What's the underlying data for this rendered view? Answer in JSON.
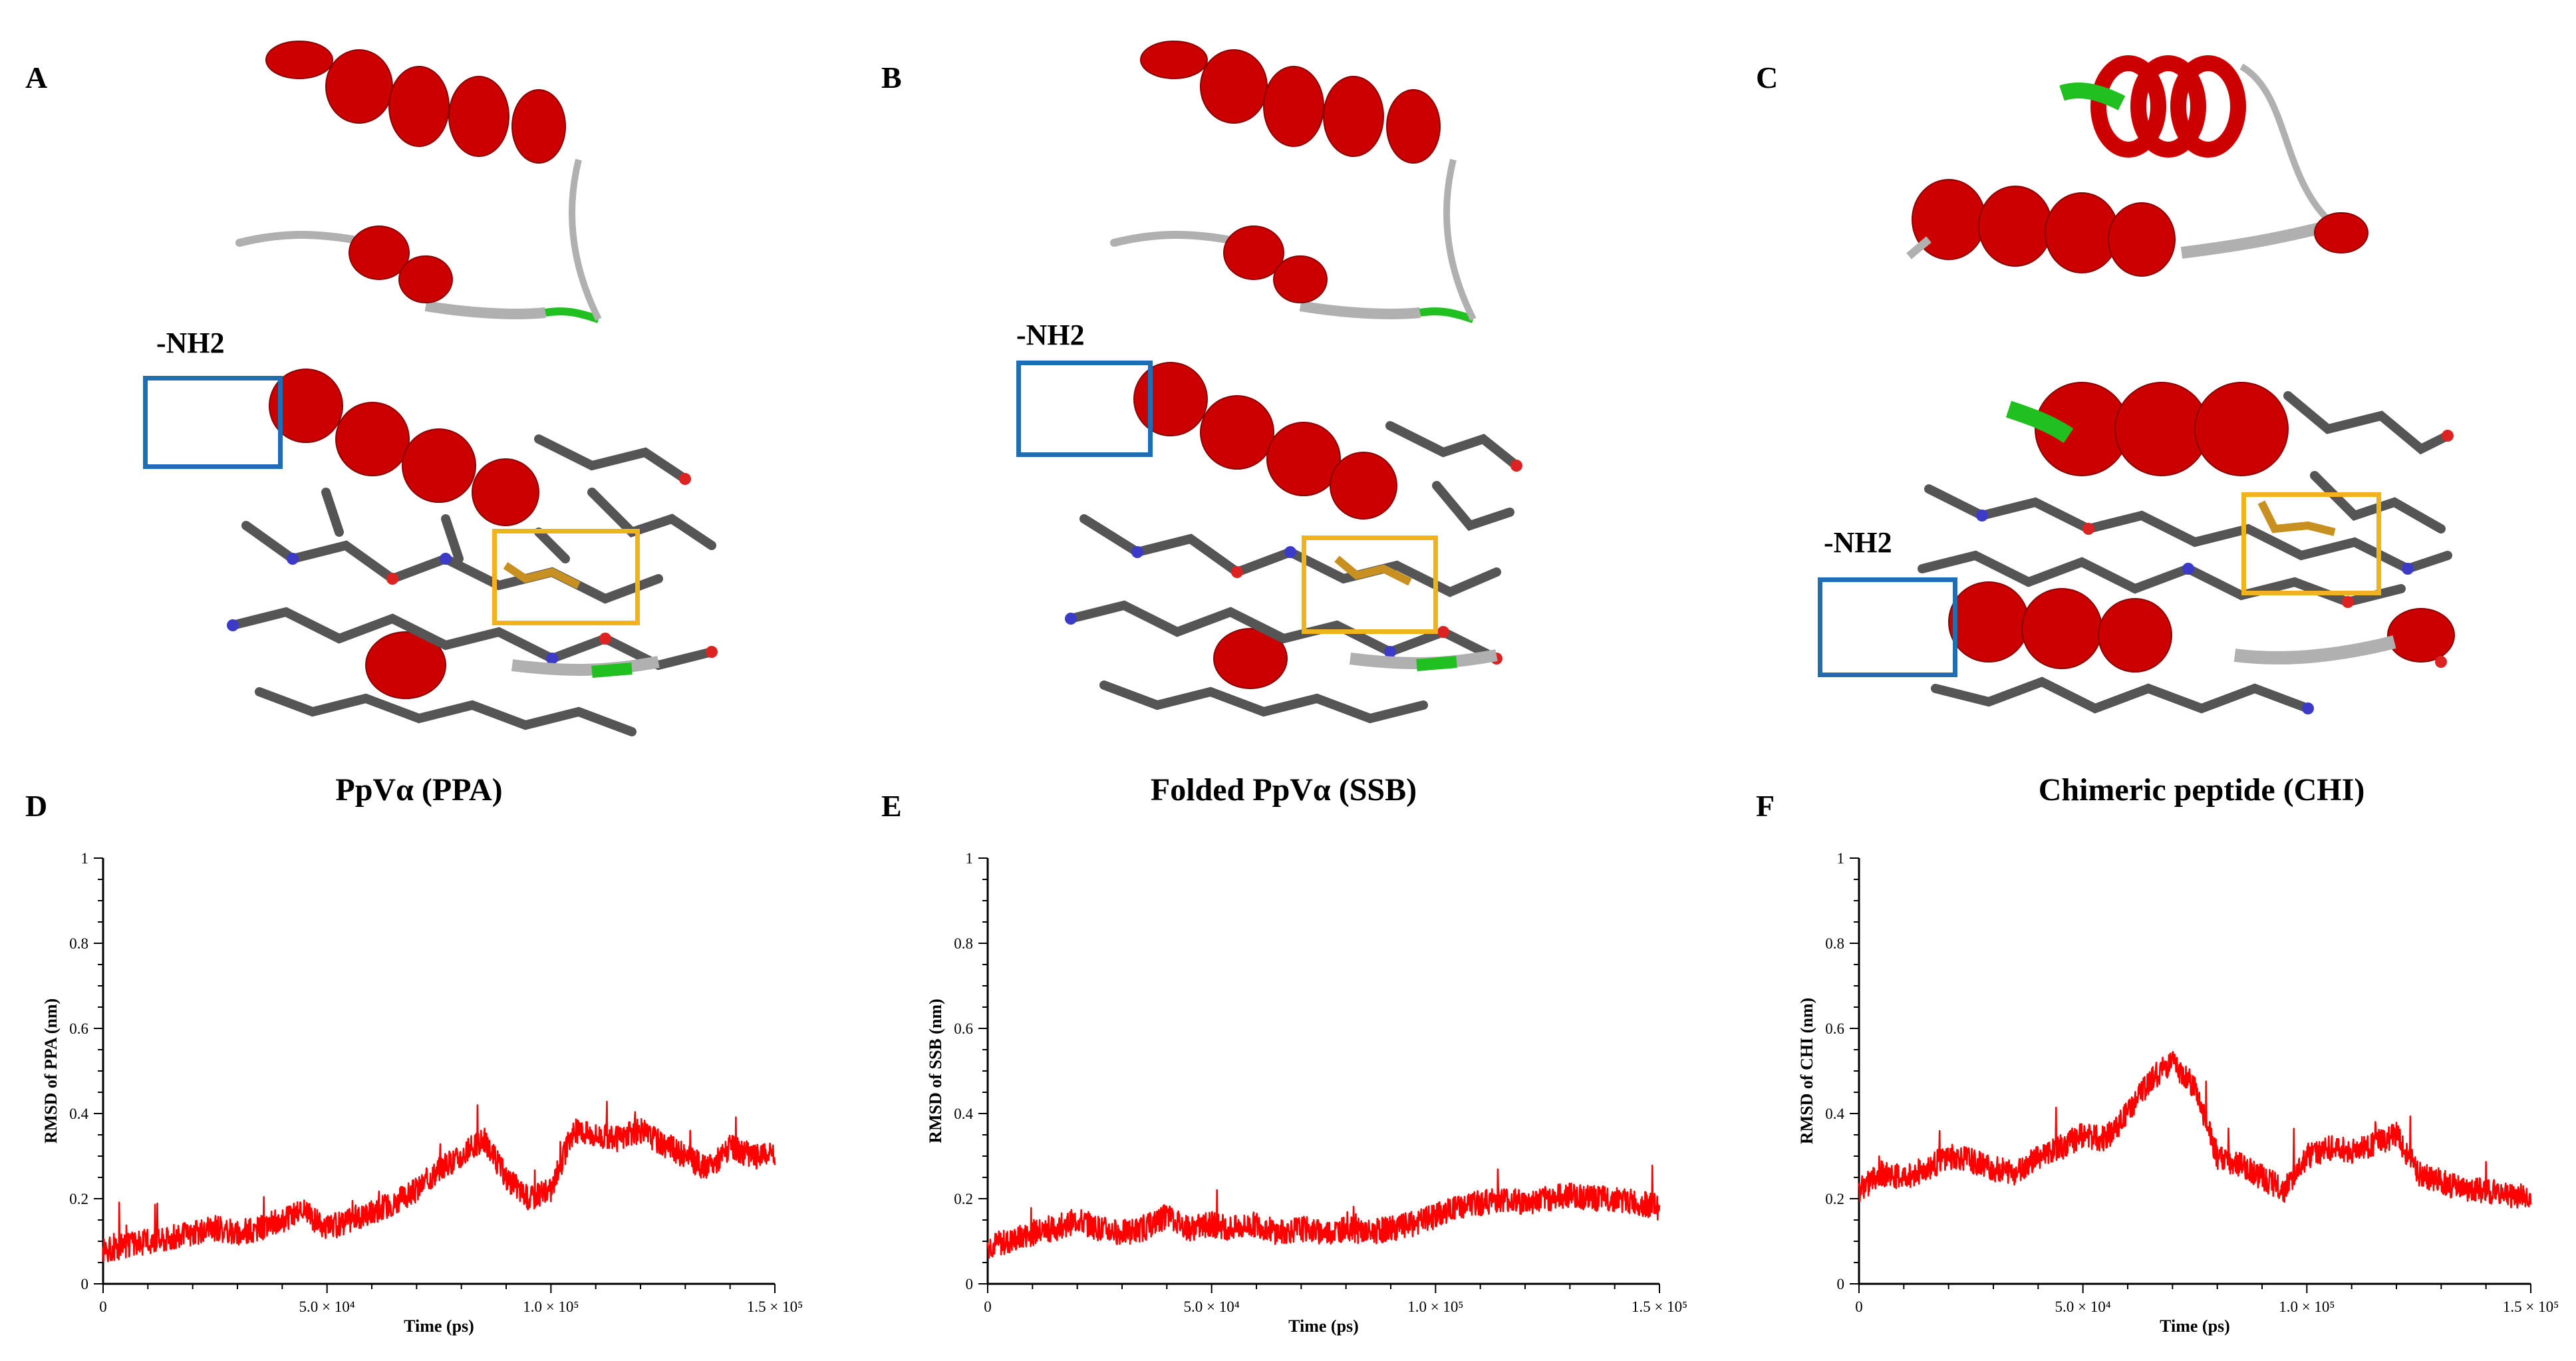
{
  "colors": {
    "helix": "#cc0000",
    "helix_light": "#e05050",
    "coil": "#b0b0b0",
    "turn": "#20c020",
    "carbon": "#555555",
    "nitrogen": "#3b3bc8",
    "oxygen": "#dd2222",
    "sulfur": "#c89020",
    "nterm_box": "#1f6db5",
    "disulfide_box": "#f2b21b",
    "trace": "#ff0000"
  },
  "panels": {
    "A": {
      "letter": "A",
      "nh2_label": "-NH2"
    },
    "B": {
      "letter": "B",
      "nh2_label": "-NH2"
    },
    "C": {
      "letter": "C",
      "nh2_label": "-NH2"
    }
  },
  "chart_data": [
    {
      "panel": "D",
      "type": "line",
      "title": "PpVα (PPA)",
      "xlabel": "Time (ps)",
      "ylabel": "RMSD of PPA (nm)",
      "xlim": [
        0,
        150000
      ],
      "ylim": [
        0,
        1
      ],
      "x_ticks": [
        "0",
        "5.0 × 10⁴",
        "1.0 × 10⁵",
        "1.5 × 10⁵"
      ],
      "y_ticks": [
        "0",
        "0.2",
        "0.4",
        "0.6",
        "0.8",
        "1"
      ],
      "grid": false,
      "series_x": [
        0,
        5000,
        10000,
        15000,
        20000,
        25000,
        30000,
        35000,
        40000,
        45000,
        50000,
        55000,
        60000,
        65000,
        70000,
        75000,
        80000,
        85000,
        90000,
        95000,
        100000,
        105000,
        110000,
        115000,
        120000,
        125000,
        130000,
        135000,
        140000,
        145000,
        150000
      ],
      "series_y": [
        0.08,
        0.09,
        0.1,
        0.11,
        0.12,
        0.13,
        0.12,
        0.13,
        0.15,
        0.17,
        0.13,
        0.15,
        0.17,
        0.19,
        0.22,
        0.27,
        0.3,
        0.34,
        0.25,
        0.2,
        0.22,
        0.36,
        0.35,
        0.34,
        0.36,
        0.33,
        0.3,
        0.27,
        0.32,
        0.3,
        0.3
      ]
    },
    {
      "panel": "E",
      "type": "line",
      "title": "Folded PpVα (SSB)",
      "xlabel": "Time (ps)",
      "ylabel": "RMSD of SSB (nm)",
      "xlim": [
        0,
        150000
      ],
      "ylim": [
        0,
        1
      ],
      "x_ticks": [
        "0",
        "5.0 × 10⁴",
        "1.0 × 10⁵",
        "1.5 × 10⁵"
      ],
      "y_ticks": [
        "0",
        "0.2",
        "0.4",
        "0.6",
        "0.8",
        "1"
      ],
      "grid": false,
      "series_x": [
        0,
        5000,
        10000,
        15000,
        20000,
        25000,
        30000,
        35000,
        40000,
        45000,
        50000,
        55000,
        60000,
        65000,
        70000,
        75000,
        80000,
        85000,
        90000,
        95000,
        100000,
        105000,
        110000,
        115000,
        120000,
        125000,
        130000,
        135000,
        140000,
        145000,
        150000
      ],
      "series_y": [
        0.09,
        0.1,
        0.12,
        0.13,
        0.15,
        0.13,
        0.12,
        0.13,
        0.16,
        0.13,
        0.14,
        0.13,
        0.14,
        0.12,
        0.13,
        0.12,
        0.13,
        0.12,
        0.13,
        0.14,
        0.16,
        0.18,
        0.19,
        0.2,
        0.19,
        0.2,
        0.21,
        0.2,
        0.2,
        0.19,
        0.18
      ]
    },
    {
      "panel": "F",
      "type": "line",
      "title": "Chimeric peptide (CHI)",
      "xlabel": "Time (ps)",
      "ylabel": "RMSD of CHI (nm)",
      "xlim": [
        0,
        150000
      ],
      "ylim": [
        0,
        1
      ],
      "x_ticks": [
        "0",
        "5.0 × 10⁴",
        "1.0 × 10⁵",
        "1.5 × 10⁵"
      ],
      "y_ticks": [
        "0",
        "0.2",
        "0.4",
        "0.6",
        "0.8",
        "1"
      ],
      "grid": false,
      "series_x": [
        0,
        5000,
        10000,
        15000,
        20000,
        25000,
        30000,
        35000,
        40000,
        45000,
        50000,
        55000,
        60000,
        65000,
        70000,
        75000,
        80000,
        85000,
        90000,
        95000,
        100000,
        105000,
        110000,
        115000,
        120000,
        125000,
        130000,
        135000,
        140000,
        145000,
        150000
      ],
      "series_y": [
        0.22,
        0.26,
        0.25,
        0.27,
        0.3,
        0.29,
        0.27,
        0.26,
        0.3,
        0.32,
        0.35,
        0.34,
        0.4,
        0.48,
        0.52,
        0.46,
        0.3,
        0.28,
        0.25,
        0.22,
        0.3,
        0.32,
        0.31,
        0.33,
        0.35,
        0.26,
        0.24,
        0.22,
        0.22,
        0.21,
        0.2
      ]
    }
  ]
}
